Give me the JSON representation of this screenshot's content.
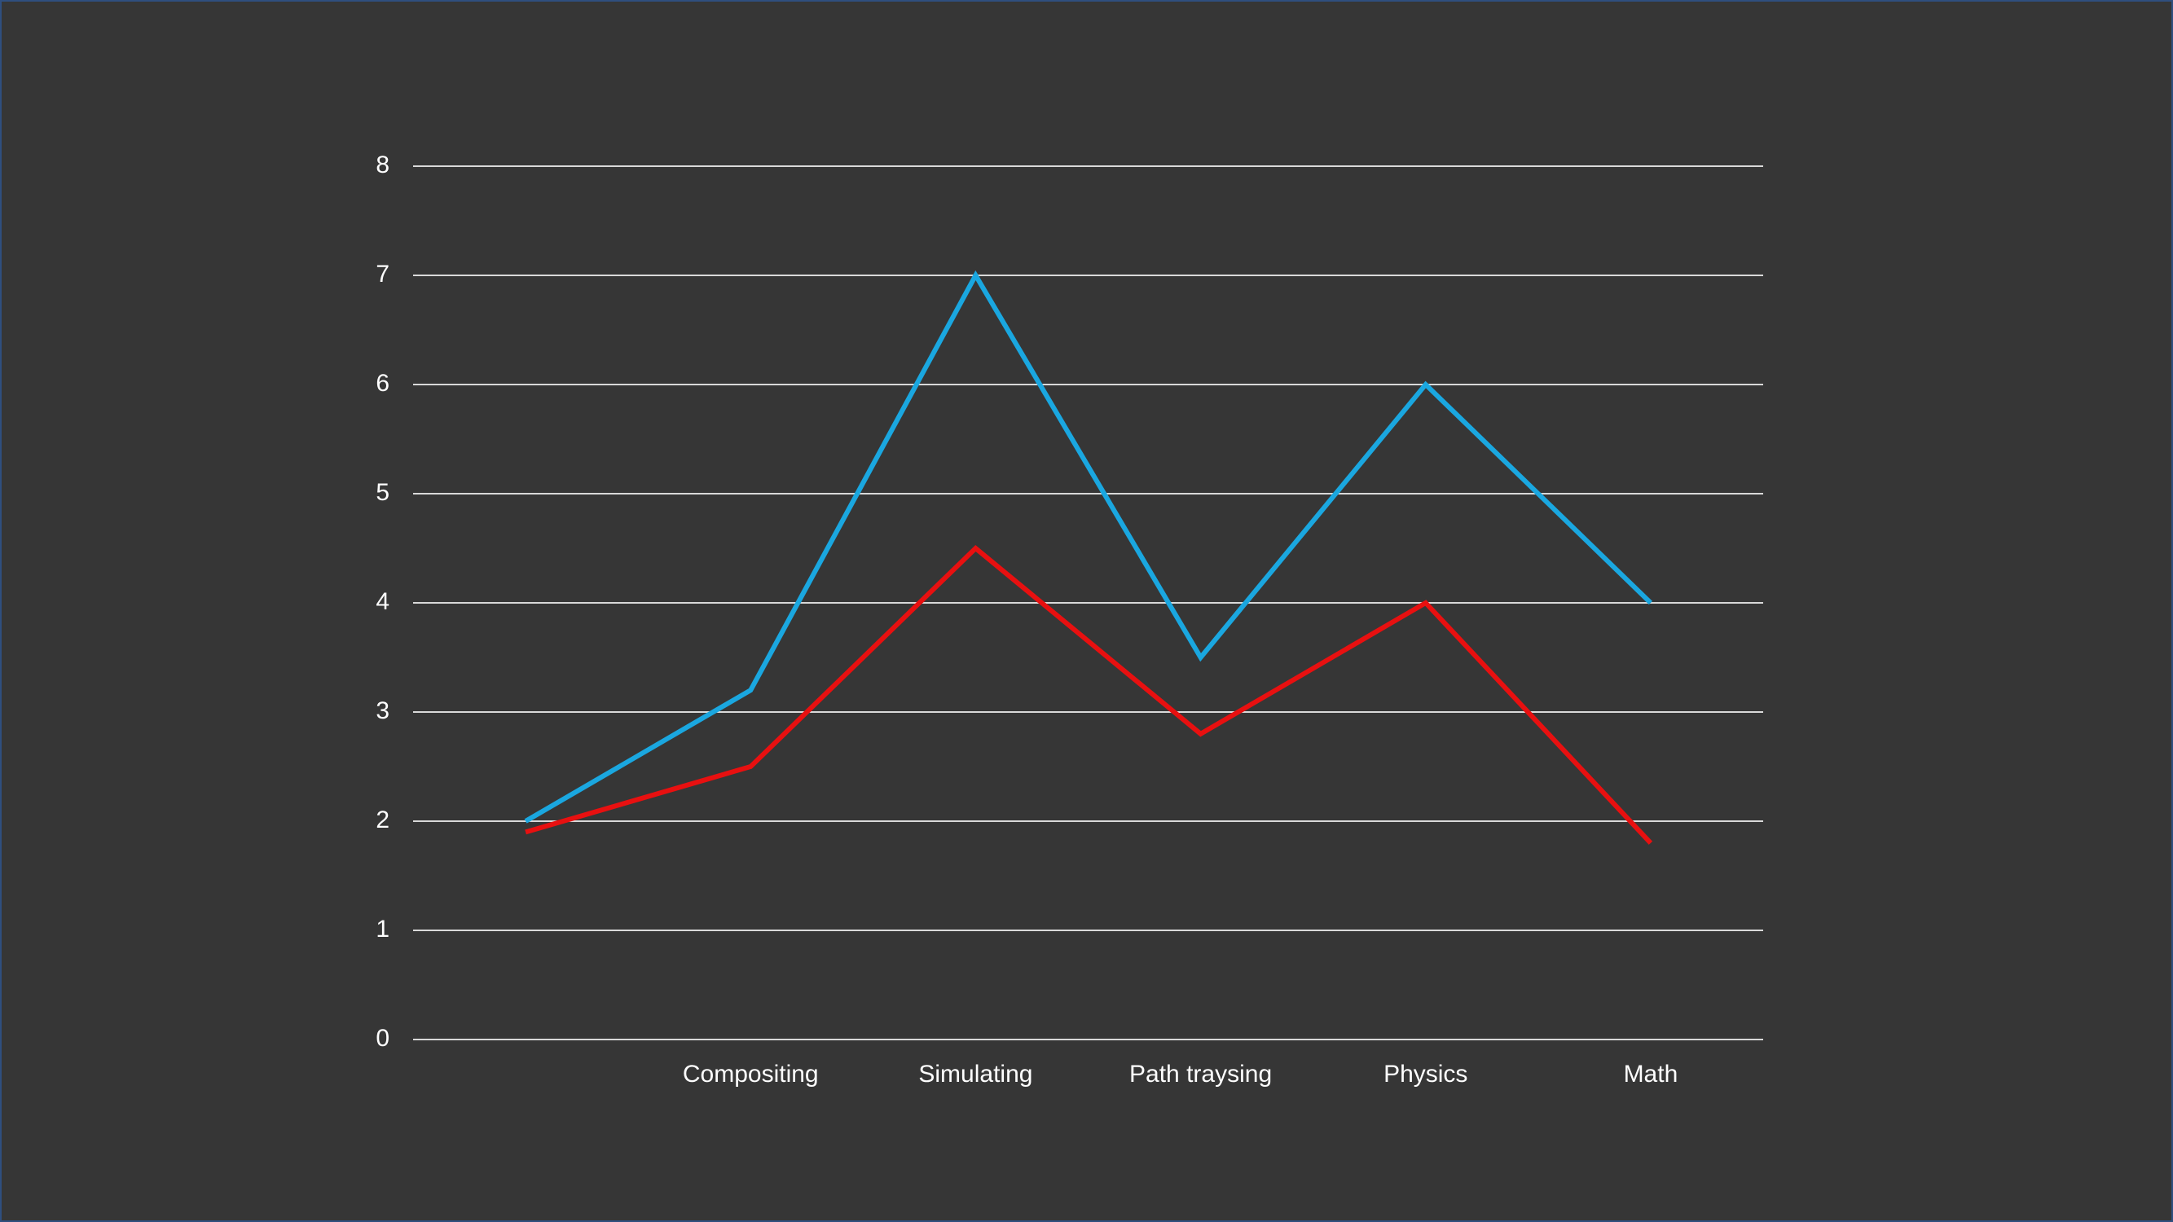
{
  "chart_data": {
    "type": "line",
    "categories": [
      null,
      "Compositing",
      "Simulating",
      "Path traysing",
      "Physics",
      "Math"
    ],
    "series": [
      {
        "color": "#1aa7e0",
        "values": [
          2,
          3.2,
          7,
          3.5,
          6,
          4
        ]
      },
      {
        "color": "#e81010",
        "values": [
          1.9,
          2.5,
          4.5,
          2.8,
          4,
          1.8
        ]
      }
    ],
    "ylim": [
      0,
      8
    ],
    "yticks": [
      0,
      1,
      2,
      3,
      4,
      5,
      6,
      7,
      8
    ],
    "grid": true
  }
}
